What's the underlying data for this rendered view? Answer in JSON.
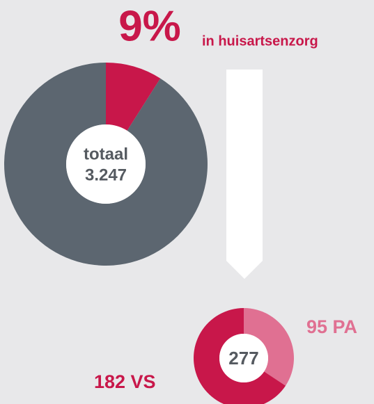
{
  "chart_data": [
    {
      "type": "donut",
      "values": [
        9,
        91
      ],
      "value_labels": [
        "9%",
        null
      ],
      "annotation": "in huisartsenzorg",
      "colors": [
        "#c8174a",
        "#5c6670"
      ],
      "center_text": [
        "totaal",
        "3.247"
      ]
    },
    {
      "type": "donut",
      "values": [
        95,
        182
      ],
      "value_labels": [
        "95 PA",
        "182 VS"
      ],
      "colors": [
        "#e07092",
        "#c8174a"
      ],
      "center_text": [
        "277"
      ]
    }
  ]
}
